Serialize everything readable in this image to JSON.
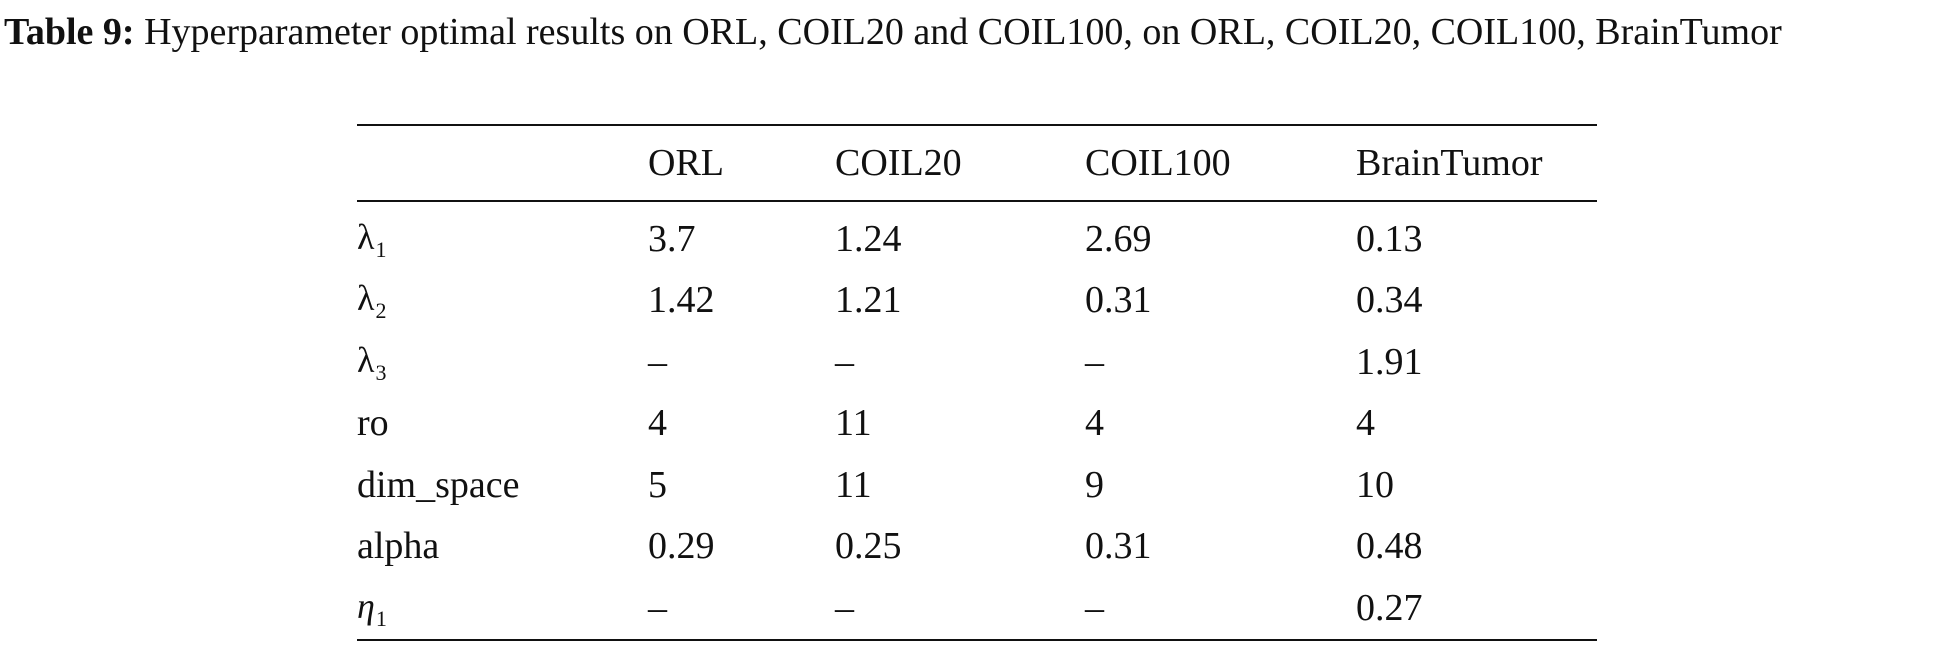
{
  "caption": {
    "label": "Table 9:",
    "text": "Hyperparameter optimal results on ORL, COIL20 and COIL100, on ORL, COIL20, COIL100, BrainTumor"
  },
  "table": {
    "columns": [
      "",
      "ORL",
      "COIL20",
      "COIL100",
      "BrainTumor"
    ],
    "rows": [
      {
        "symbol": "λ",
        "sub": "1",
        "italic": false,
        "values": [
          "3.7",
          "1.24",
          "2.69",
          "0.13"
        ]
      },
      {
        "symbol": "λ",
        "sub": "2",
        "italic": false,
        "values": [
          "1.42",
          "1.21",
          "0.31",
          "0.34"
        ]
      },
      {
        "symbol": "λ",
        "sub": "3",
        "italic": false,
        "values": [
          "–",
          "–",
          "–",
          "1.91"
        ]
      },
      {
        "symbol": "ro",
        "sub": "",
        "italic": false,
        "values": [
          "4",
          "11",
          "4",
          "4"
        ]
      },
      {
        "symbol": "dim_space",
        "sub": "",
        "italic": false,
        "values": [
          "5",
          "11",
          "9",
          "10"
        ]
      },
      {
        "symbol": "alpha",
        "sub": "",
        "italic": false,
        "values": [
          "0.29",
          "0.25",
          "0.31",
          "0.48"
        ]
      },
      {
        "symbol": "η",
        "sub": "1",
        "italic": true,
        "values": [
          "–",
          "–",
          "–",
          "0.27"
        ]
      }
    ]
  }
}
